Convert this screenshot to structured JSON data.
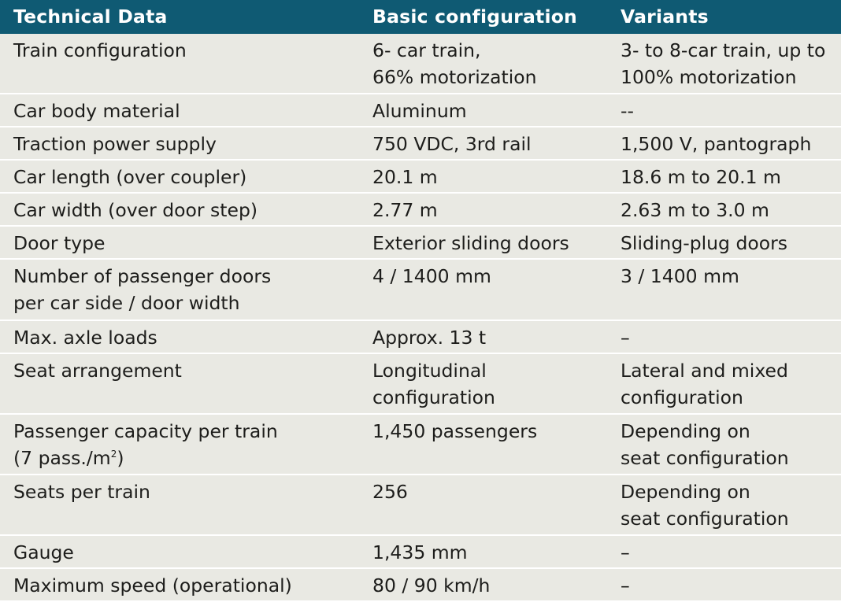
{
  "headers": [
    "Technical Data",
    "Basic configuration",
    "Variants"
  ],
  "rows": [
    [
      "Train configuration",
      "6- car train,\n66% motorization",
      "3- to 8-car train, up to\n100% motorization"
    ],
    [
      "Car body material",
      "Aluminum",
      "--"
    ],
    [
      "Traction power supply",
      "750 VDC, 3rd rail",
      "1,500 V, pantograph"
    ],
    [
      "Car length (over coupler)",
      "20.1 m",
      "18.6 m to 20.1 m"
    ],
    [
      "Car width (over door step)",
      "2.77 m",
      "2.63 m to 3.0 m"
    ],
    [
      "Door type",
      "Exterior sliding doors",
      "Sliding-plug doors"
    ],
    [
      "Number of passenger doors\nper car side / door width",
      "4 / 1400 mm",
      "3 / 1400 mm"
    ],
    [
      "Max. axle loads",
      "Approx. 13 t",
      "–"
    ],
    [
      "Seat arrangement",
      "Longitudinal\nconfiguration",
      "Lateral and mixed\nconfiguration"
    ],
    [
      "Passenger capacity per train",
      "1,450 passengers",
      "Depending on\nseat configuration"
    ],
    [
      "Seats per train",
      "256",
      "Depending on\nseat configuration"
    ],
    [
      "Gauge",
      "1,435 mm",
      "–"
    ],
    [
      "Maximum speed (operational)",
      "80 / 90 km/h",
      "–"
    ]
  ],
  "capacity_note_prefix": "(7 pass./m",
  "capacity_note_sup": "2",
  "capacity_note_suffix": ")"
}
